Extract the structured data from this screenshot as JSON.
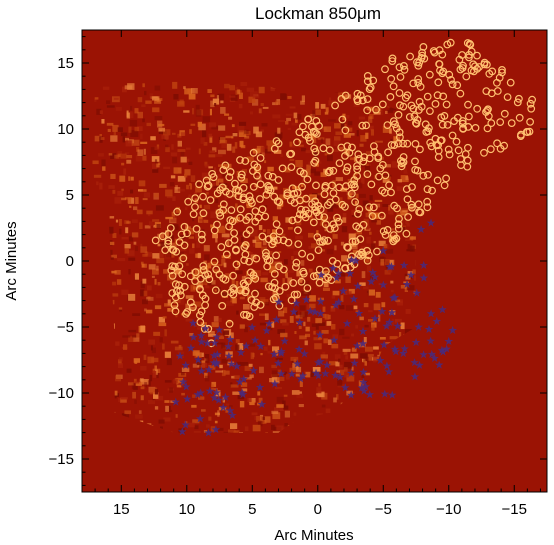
{
  "chart_data": {
    "type": "scatter",
    "title": "Lockman 850μm",
    "xlabel": "Arc Minutes",
    "ylabel": "Arc Minutes",
    "xlim": [
      18,
      -17.5
    ],
    "ylim": [
      -17.5,
      17.5
    ],
    "x_ticks": [
      15,
      10,
      5,
      0,
      -5,
      -10,
      -15
    ],
    "x_tick_labels": [
      "15",
      "10",
      "5",
      "0",
      "−5",
      "−10",
      "−15"
    ],
    "y_ticks": [
      15,
      10,
      5,
      0,
      -5,
      -10,
      -15
    ],
    "y_tick_labels": [
      "15",
      "10",
      "5",
      "0",
      "−5",
      "−10",
      "−15"
    ],
    "grid": false,
    "legend": "none",
    "colors": {
      "background_map": "#9b1304",
      "map_texture_light": "#d9641e",
      "map_texture_dark": "#7d0c02",
      "circle_markers": "#ffc070",
      "star_markers": "#4a2a7a"
    },
    "coverage_region": {
      "outline": [
        [
          13.5,
          13.6
        ],
        [
          4.5,
          13.6
        ],
        [
          2,
          12.5
        ],
        [
          -2,
          12.8
        ],
        [
          -6,
          11.5
        ],
        [
          -7.5,
          3
        ],
        [
          -7.5,
          -5
        ],
        [
          -5,
          -6.5
        ],
        [
          -4,
          -9
        ],
        [
          -1,
          -11.5
        ],
        [
          1.5,
          -12
        ],
        [
          3,
          -13
        ],
        [
          8,
          -13
        ],
        [
          11,
          -13
        ],
        [
          15.5,
          -11.5
        ],
        [
          15.5,
          -6
        ],
        [
          16,
          4
        ],
        [
          17.2,
          5.5
        ],
        [
          17.2,
          13.5
        ]
      ]
    },
    "series": [
      {
        "marker": "circle",
        "color": "#ffc070",
        "region": [
          [
            11.5,
            2.8
          ],
          [
            12.5,
            1.5
          ],
          [
            11.5,
            -2.8
          ],
          [
            9,
            -6.8
          ],
          [
            5.5,
            -4.8
          ],
          [
            1,
            -2.5
          ],
          [
            -3.5,
            -0.5
          ],
          [
            -6.5,
            1.5
          ],
          [
            -8.5,
            4
          ],
          [
            -10,
            6
          ],
          [
            -13,
            7.8
          ],
          [
            -15,
            9.2
          ],
          [
            -17.5,
            10
          ],
          [
            -16,
            13
          ],
          [
            -12.5,
            15.8
          ],
          [
            -11,
            17
          ],
          [
            -8,
            16.5
          ],
          [
            -5,
            15
          ],
          [
            -1,
            12
          ],
          [
            2.5,
            10
          ],
          [
            6,
            8
          ],
          [
            9,
            6
          ]
        ],
        "count": 620
      },
      {
        "marker": "star",
        "color": "#4a2a7a",
        "region": [
          [
            8.5,
            -14
          ],
          [
            11,
            -13
          ],
          [
            11,
            -8
          ],
          [
            9.5,
            -4.5
          ],
          [
            5,
            -4.5
          ],
          [
            2,
            -2
          ],
          [
            -2,
            0
          ],
          [
            -4.5,
            0.5
          ],
          [
            -7,
            2
          ],
          [
            -10,
            5
          ],
          [
            -8.5,
            -1
          ],
          [
            -11,
            -3
          ],
          [
            -10,
            -7
          ],
          [
            -7.5,
            -10
          ],
          [
            -2,
            -10.5
          ],
          [
            2,
            -9.5
          ],
          [
            5,
            -11.5
          ]
        ],
        "count": 170
      }
    ]
  }
}
